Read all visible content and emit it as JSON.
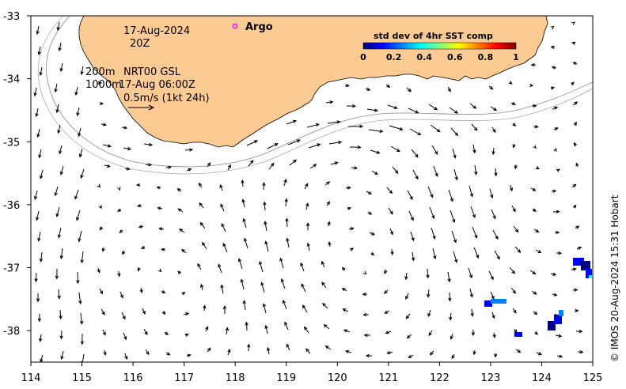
{
  "map": {
    "x_ticks": [
      114,
      115,
      116,
      117,
      118,
      119,
      120,
      121,
      122,
      123,
      124,
      125
    ],
    "y_ticks": [
      -33,
      -34,
      -35,
      -36,
      -37,
      -38
    ],
    "lon_range": [
      114,
      125
    ],
    "lat_range": [
      -38.5,
      -33
    ],
    "land_color": "#FCCB94",
    "plot_bg": "#ffffff"
  },
  "labels": {
    "date": "17-Aug-2024",
    "time": "20Z",
    "depth_200": "200m",
    "depth_1000": "1000m",
    "product": "NRT00 GSL",
    "product_time": "17-Aug 06:00Z",
    "scale": "0.5m/s (1kt 24h)",
    "argo": "Argo",
    "credit": "© IMOS 20-Aug-2024 15:31 Hobart"
  },
  "colorbar": {
    "title": "std dev of 4hr SST comp",
    "ticks": [
      "0",
      "0.2",
      "0.4",
      "0.6",
      "0.8",
      "1"
    ],
    "colors": [
      "#00007f",
      "#0000ff",
      "#007fff",
      "#00ffff",
      "#7fff7f",
      "#ffff00",
      "#ff7f00",
      "#ff0000",
      "#7f0000"
    ]
  }
}
